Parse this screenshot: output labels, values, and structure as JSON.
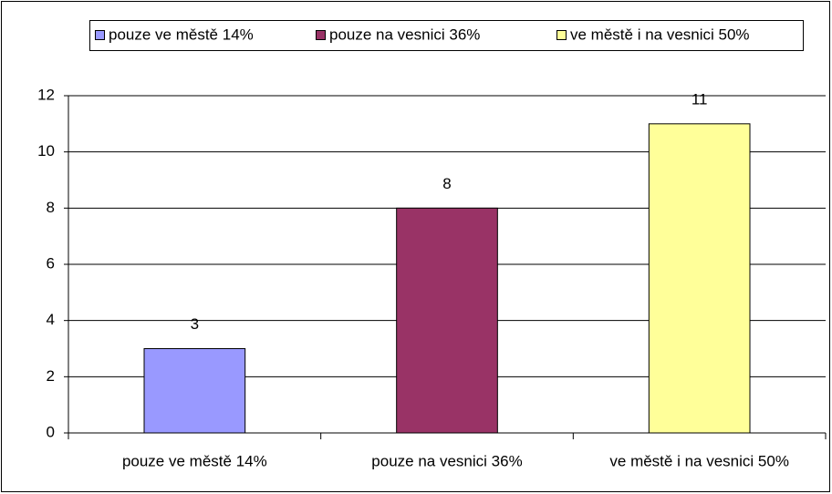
{
  "chart_data": {
    "type": "bar",
    "categories": [
      "pouze ve městě 14%",
      "pouze na vesnici 36%",
      "ve městě i na vesnici 50%"
    ],
    "values": [
      3,
      8,
      11
    ],
    "colors": [
      "#9999ff",
      "#993366",
      "#ffff99"
    ],
    "ylim": [
      0,
      12
    ],
    "yticks": [
      0,
      2,
      4,
      6,
      8,
      10,
      12
    ],
    "grid": true,
    "legend": "top"
  }
}
